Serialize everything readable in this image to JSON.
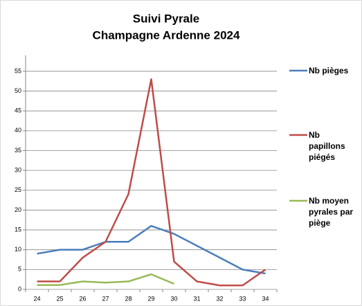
{
  "chart_data": {
    "type": "line",
    "title": [
      "Suivi Pyrale",
      "Champagne Ardenne 2024"
    ],
    "categories": [
      "24",
      "25",
      "26",
      "27",
      "28",
      "29",
      "30",
      "31",
      "32",
      "33",
      "34"
    ],
    "series": [
      {
        "name": "Nb pièges",
        "color": "#4a7ebb",
        "values": [
          9,
          10,
          10,
          12,
          12,
          16,
          14,
          11,
          8,
          5,
          4
        ]
      },
      {
        "name": "Nb papillons piégés",
        "color": "#be4b48",
        "values": [
          2,
          2,
          8,
          12,
          24,
          53,
          7,
          2,
          1,
          1,
          5
        ]
      },
      {
        "name": "Nb moyen pyrales par piège",
        "color": "#98b954",
        "values": [
          1.1,
          1.1,
          2,
          1.7,
          2,
          3.8,
          1.4,
          null,
          null,
          null,
          null
        ]
      }
    ],
    "ylim": [
      0,
      59
    ],
    "yticks": [
      0,
      5,
      10,
      15,
      20,
      25,
      30,
      35,
      40,
      45,
      50,
      55
    ],
    "grid": true,
    "legend": "right"
  }
}
